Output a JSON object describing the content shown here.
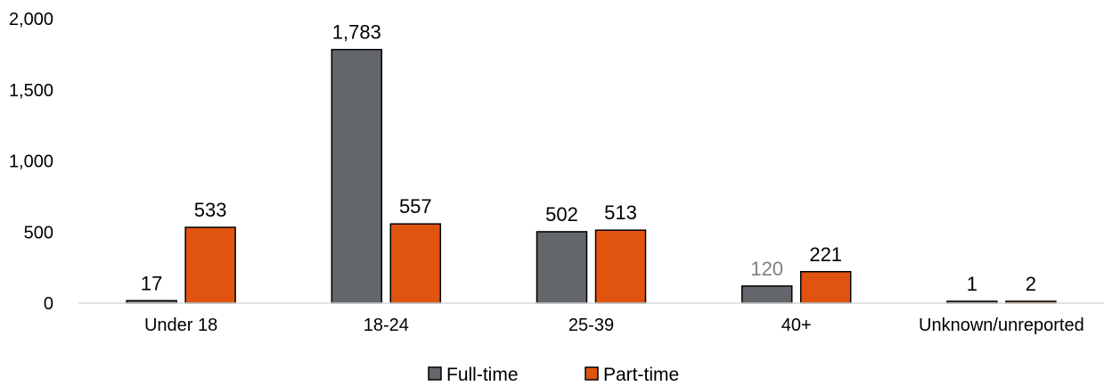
{
  "chart_data": {
    "type": "bar",
    "categories": [
      "Under 18",
      "18-24",
      "25-39",
      "40+",
      "Unknown/unreported"
    ],
    "series": [
      {
        "name": "Full-time",
        "values": [
          17,
          1783,
          502,
          120,
          1
        ],
        "color": "#63666a",
        "labels": [
          "17",
          "1,783",
          "502",
          "120",
          "1"
        ],
        "label_colors": [
          "#000000",
          "#000000",
          "#000000",
          "#7f7f7f",
          "#000000"
        ]
      },
      {
        "name": "Part-time",
        "values": [
          533,
          557,
          513,
          221,
          2
        ],
        "color": "#e0540f",
        "labels": [
          "533",
          "557",
          "513",
          "221",
          "2"
        ],
        "label_colors": [
          "#000000",
          "#000000",
          "#000000",
          "#000000",
          "#000000"
        ]
      }
    ],
    "y_ticks": [
      0,
      500,
      1000,
      1500,
      2000
    ],
    "y_tick_labels": [
      "0",
      "500",
      "1,000",
      "1,500",
      "2,000"
    ],
    "ylim": [
      0,
      2000
    ],
    "grid": false,
    "legend_position": "bottom"
  }
}
